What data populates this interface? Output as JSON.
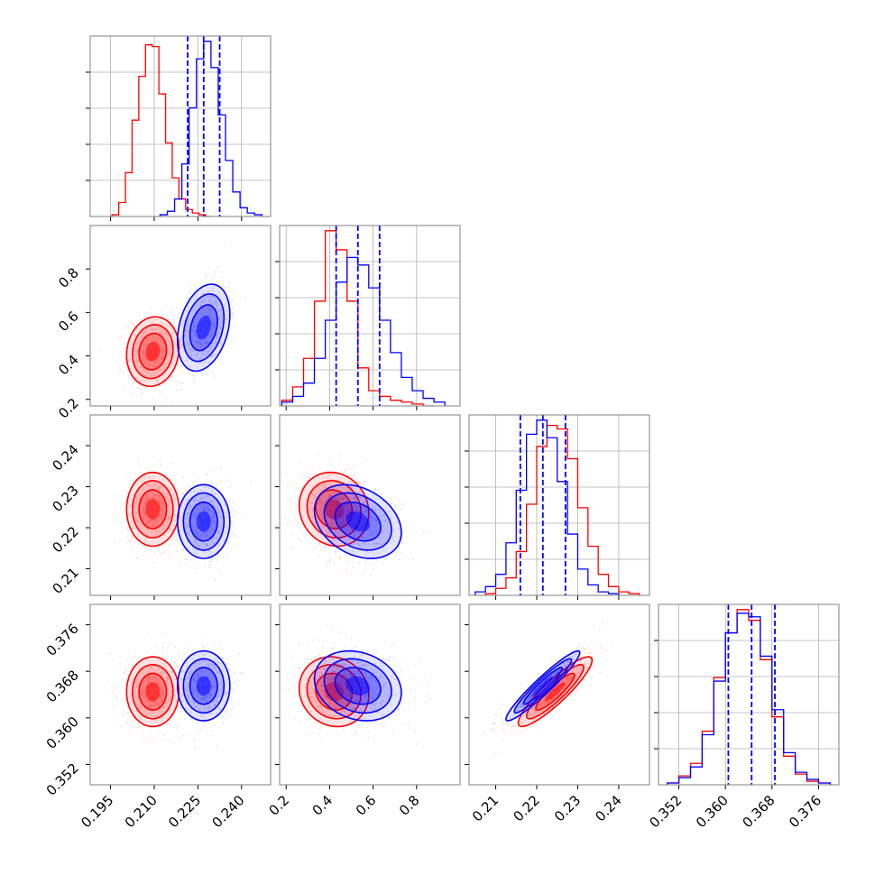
{
  "chart_data": {
    "type": "corner",
    "title": "",
    "colors": {
      "red_series": "#ff0000",
      "blue_series": "#0000ff",
      "grid": "#b0b0b0",
      "frame": "#808080"
    },
    "grid": true,
    "parameters": [
      {
        "range": [
          0.188,
          0.25
        ],
        "ticks": [
          0.195,
          0.21,
          0.225,
          0.24
        ],
        "tick_labels": [
          "0.195",
          "0.210",
          "0.225",
          "0.240"
        ]
      },
      {
        "range": [
          0.17,
          1.0
        ],
        "ticks": [
          0.2,
          0.4,
          0.6,
          0.8
        ],
        "tick_labels": [
          "0.2",
          "0.4",
          "0.6",
          "0.8"
        ]
      },
      {
        "range": [
          0.2035,
          0.2475
        ],
        "ticks": [
          0.21,
          0.22,
          0.23,
          0.24
        ],
        "tick_labels": [
          "0.21",
          "0.22",
          "0.23",
          "0.24"
        ]
      },
      {
        "range": [
          0.3485,
          0.3795
        ],
        "ticks": [
          0.352,
          0.36,
          0.368,
          0.376
        ],
        "tick_labels": [
          "0.352",
          "0.360",
          "0.368",
          "0.376"
        ]
      }
    ],
    "series": [
      {
        "color": "#ff0000",
        "mean": [
          0.2095,
          0.42,
          0.2245,
          0.3645
        ],
        "std": [
          0.0045,
          0.08,
          0.0045,
          0.003
        ],
        "correlations": [
          [
            0,
            1,
            0.1
          ],
          [
            0,
            2,
            0.0
          ],
          [
            0,
            3,
            0.0
          ],
          [
            1,
            2,
            -0.1
          ],
          [
            1,
            3,
            -0.1
          ],
          [
            2,
            3,
            0.9
          ]
        ],
        "histograms": [
          {
            "bins": [
              0.1955,
              0.1978,
              0.2001,
              0.2024,
              0.2047,
              0.207,
              0.2093,
              0.2116,
              0.2139,
              0.2162,
              0.2185,
              0.2208,
              0.2231,
              0.2254,
              0.2277,
              0.23
            ],
            "counts": [
              0.01,
              0.08,
              0.25,
              0.55,
              0.8,
              0.98,
              0.97,
              0.7,
              0.42,
              0.22,
              0.1,
              0.04,
              0.02,
              0.01,
              0.0
            ]
          },
          {
            "bins": [
              0.18,
              0.23,
              0.28,
              0.33,
              0.38,
              0.43,
              0.48,
              0.53,
              0.58,
              0.63,
              0.68,
              0.73,
              0.78,
              0.83,
              0.88
            ],
            "counts": [
              0.03,
              0.1,
              0.25,
              0.55,
              0.92,
              0.82,
              0.55,
              0.2,
              0.08,
              0.05,
              0.03,
              0.02,
              0.01,
              0.0
            ]
          },
          {
            "bins": [
              0.2075,
              0.21,
              0.2125,
              0.215,
              0.2175,
              0.22,
              0.2225,
              0.225,
              0.2275,
              0.23,
              0.2325,
              0.235,
              0.2375,
              0.24,
              0.2425,
              0.245
            ],
            "counts": [
              0.01,
              0.04,
              0.1,
              0.25,
              0.52,
              0.85,
              0.97,
              0.95,
              0.78,
              0.5,
              0.28,
              0.12,
              0.05,
              0.02,
              0.01
            ]
          },
          {
            "bins": [
              0.35,
              0.352,
              0.354,
              0.356,
              0.358,
              0.36,
              0.362,
              0.364,
              0.366,
              0.368,
              0.37,
              0.372,
              0.374,
              0.376,
              0.378
            ],
            "counts": [
              0.01,
              0.05,
              0.12,
              0.3,
              0.6,
              0.85,
              0.98,
              0.92,
              0.7,
              0.38,
              0.16,
              0.06,
              0.02,
              0.01
            ]
          }
        ]
      },
      {
        "color": "#0000ff",
        "mean": [
          0.227,
          0.53,
          0.2215,
          0.3655
        ],
        "std": [
          0.0045,
          0.1,
          0.0045,
          0.003
        ],
        "correlations": [
          [
            0,
            1,
            0.3
          ],
          [
            0,
            2,
            0.0
          ],
          [
            0,
            3,
            0.0
          ],
          [
            1,
            2,
            -0.3
          ],
          [
            1,
            3,
            -0.2
          ],
          [
            2,
            3,
            0.95
          ]
        ],
        "histograms": [
          {
            "bins": [
              0.212,
              0.2145,
              0.217,
              0.2195,
              0.222,
              0.2245,
              0.227,
              0.2295,
              0.232,
              0.2345,
              0.237,
              0.2395,
              0.242,
              0.2445,
              0.247
            ],
            "counts": [
              0.01,
              0.03,
              0.1,
              0.3,
              0.62,
              0.9,
              1.0,
              0.85,
              0.58,
              0.32,
              0.14,
              0.05,
              0.02,
              0.01
            ]
          },
          {
            "bins": [
              0.18,
              0.23,
              0.28,
              0.33,
              0.38,
              0.43,
              0.48,
              0.53,
              0.58,
              0.63,
              0.68,
              0.73,
              0.78,
              0.83,
              0.88,
              0.93
            ],
            "counts": [
              0.02,
              0.05,
              0.12,
              0.25,
              0.45,
              0.65,
              0.78,
              0.74,
              0.62,
              0.45,
              0.28,
              0.15,
              0.08,
              0.04,
              0.02
            ]
          },
          {
            "bins": [
              0.205,
              0.2075,
              0.21,
              0.2125,
              0.215,
              0.2175,
              0.22,
              0.2225,
              0.225,
              0.2275,
              0.23,
              0.2325,
              0.235,
              0.2375,
              0.24
            ],
            "counts": [
              0.02,
              0.05,
              0.12,
              0.3,
              0.6,
              0.92,
              1.0,
              0.9,
              0.65,
              0.35,
              0.15,
              0.06,
              0.02,
              0.01
            ]
          },
          {
            "bins": [
              0.35,
              0.352,
              0.354,
              0.356,
              0.358,
              0.36,
              0.362,
              0.364,
              0.366,
              0.368,
              0.37,
              0.372,
              0.374,
              0.376,
              0.378
            ],
            "counts": [
              0.01,
              0.04,
              0.1,
              0.28,
              0.58,
              0.85,
              0.96,
              0.94,
              0.72,
              0.42,
              0.18,
              0.07,
              0.03,
              0.01
            ]
          }
        ]
      }
    ],
    "quantile_lines": {
      "color": "#0000ff",
      "style": "dashed",
      "values": [
        [
          0.2215,
          0.227,
          0.2325
        ],
        [
          0.43,
          0.53,
          0.63
        ],
        [
          0.216,
          0.2215,
          0.227
        ],
        [
          0.3605,
          0.3645,
          0.3685
        ]
      ]
    }
  }
}
